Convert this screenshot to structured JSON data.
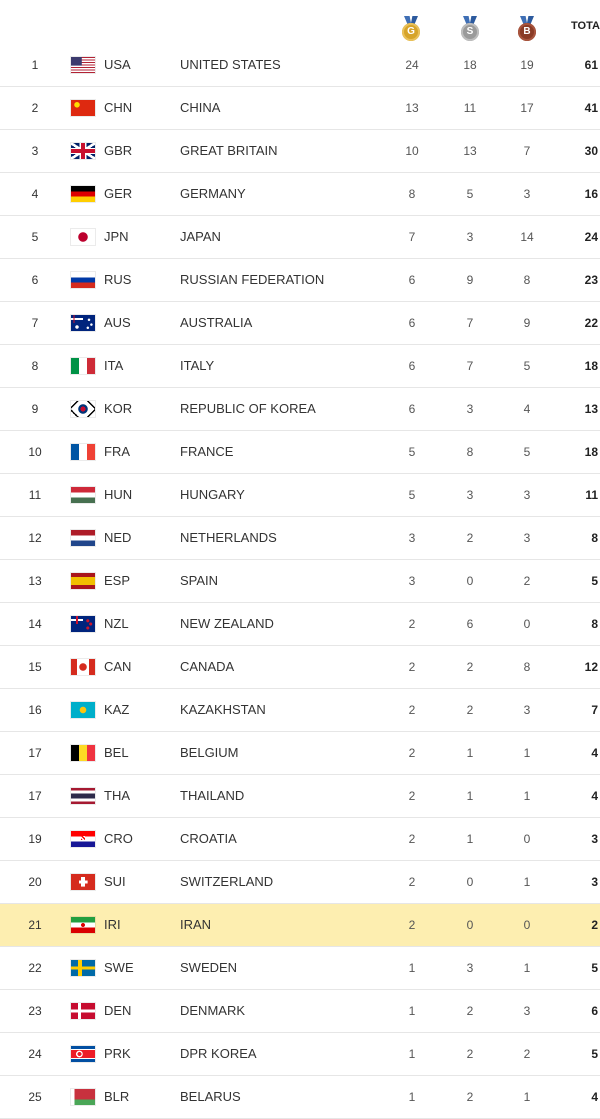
{
  "header": {
    "gold_letter": "G",
    "silver_letter": "S",
    "bronze_letter": "B",
    "total_label": "TOTAL"
  },
  "rows": [
    {
      "rank": "1",
      "code": "USA",
      "country": "UNITED STATES",
      "gold": 24,
      "silver": 18,
      "bronze": 19,
      "total": 61
    },
    {
      "rank": "2",
      "code": "CHN",
      "country": "CHINA",
      "gold": 13,
      "silver": 11,
      "bronze": 17,
      "total": 41
    },
    {
      "rank": "3",
      "code": "GBR",
      "country": "GREAT BRITAIN",
      "gold": 10,
      "silver": 13,
      "bronze": 7,
      "total": 30
    },
    {
      "rank": "4",
      "code": "GER",
      "country": "GERMANY",
      "gold": 8,
      "silver": 5,
      "bronze": 3,
      "total": 16
    },
    {
      "rank": "5",
      "code": "JPN",
      "country": "JAPAN",
      "gold": 7,
      "silver": 3,
      "bronze": 14,
      "total": 24
    },
    {
      "rank": "6",
      "code": "RUS",
      "country": "RUSSIAN FEDERATION",
      "gold": 6,
      "silver": 9,
      "bronze": 8,
      "total": 23
    },
    {
      "rank": "7",
      "code": "AUS",
      "country": "AUSTRALIA",
      "gold": 6,
      "silver": 7,
      "bronze": 9,
      "total": 22
    },
    {
      "rank": "8",
      "code": "ITA",
      "country": "ITALY",
      "gold": 6,
      "silver": 7,
      "bronze": 5,
      "total": 18
    },
    {
      "rank": "9",
      "code": "KOR",
      "country": "REPUBLIC OF KOREA",
      "gold": 6,
      "silver": 3,
      "bronze": 4,
      "total": 13
    },
    {
      "rank": "10",
      "code": "FRA",
      "country": "FRANCE",
      "gold": 5,
      "silver": 8,
      "bronze": 5,
      "total": 18
    },
    {
      "rank": "11",
      "code": "HUN",
      "country": "HUNGARY",
      "gold": 5,
      "silver": 3,
      "bronze": 3,
      "total": 11
    },
    {
      "rank": "12",
      "code": "NED",
      "country": "NETHERLANDS",
      "gold": 3,
      "silver": 2,
      "bronze": 3,
      "total": 8
    },
    {
      "rank": "13",
      "code": "ESP",
      "country": "SPAIN",
      "gold": 3,
      "silver": 0,
      "bronze": 2,
      "total": 5
    },
    {
      "rank": "14",
      "code": "NZL",
      "country": "NEW ZEALAND",
      "gold": 2,
      "silver": 6,
      "bronze": 0,
      "total": 8
    },
    {
      "rank": "15",
      "code": "CAN",
      "country": "CANADA",
      "gold": 2,
      "silver": 2,
      "bronze": 8,
      "total": 12
    },
    {
      "rank": "16",
      "code": "KAZ",
      "country": "KAZAKHSTAN",
      "gold": 2,
      "silver": 2,
      "bronze": 3,
      "total": 7
    },
    {
      "rank": "17",
      "code": "BEL",
      "country": "BELGIUM",
      "gold": 2,
      "silver": 1,
      "bronze": 1,
      "total": 4
    },
    {
      "rank": "17",
      "code": "THA",
      "country": "THAILAND",
      "gold": 2,
      "silver": 1,
      "bronze": 1,
      "total": 4
    },
    {
      "rank": "19",
      "code": "CRO",
      "country": "CROATIA",
      "gold": 2,
      "silver": 1,
      "bronze": 0,
      "total": 3
    },
    {
      "rank": "20",
      "code": "SUI",
      "country": "SWITZERLAND",
      "gold": 2,
      "silver": 0,
      "bronze": 1,
      "total": 3
    },
    {
      "rank": "21",
      "code": "IRI",
      "country": "IRAN",
      "gold": 2,
      "silver": 0,
      "bronze": 0,
      "total": 2,
      "highlight": true
    },
    {
      "rank": "22",
      "code": "SWE",
      "country": "SWEDEN",
      "gold": 1,
      "silver": 3,
      "bronze": 1,
      "total": 5
    },
    {
      "rank": "23",
      "code": "DEN",
      "country": "DENMARK",
      "gold": 1,
      "silver": 2,
      "bronze": 3,
      "total": 6
    },
    {
      "rank": "24",
      "code": "PRK",
      "country": "DPR KOREA",
      "gold": 1,
      "silver": 2,
      "bronze": 2,
      "total": 5
    },
    {
      "rank": "25",
      "code": "BLR",
      "country": "BELARUS",
      "gold": 1,
      "silver": 2,
      "bronze": 1,
      "total": 4
    }
  ],
  "colors": {
    "highlight_row": "#fdeeb0",
    "gold": "#d6a42a",
    "silver": "#9a9a9a",
    "bronze": "#8a3b26"
  }
}
